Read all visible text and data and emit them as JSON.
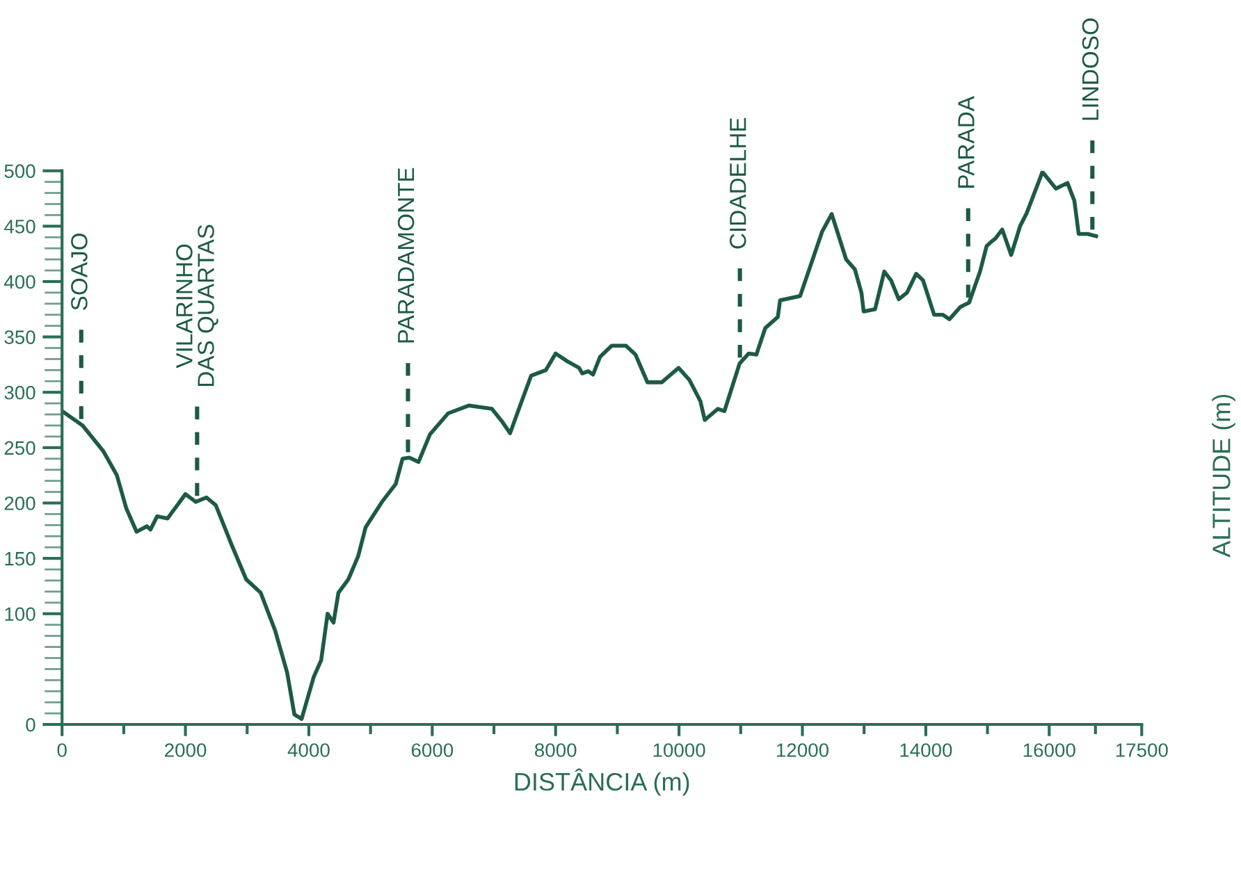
{
  "chart_data": {
    "type": "line",
    "xlabel": "DISTÂNCIA (m)",
    "ylabel": "ALTITUDE (m)",
    "series": [
      {
        "color": "#1d5a44",
        "x": [
          0,
          333,
          667,
          889,
          1042,
          1208,
          1375,
          1433,
          1542,
          1708,
          2000,
          2167,
          2341,
          2492,
          2758,
          2985,
          3219,
          3453,
          3648,
          3766,
          3883,
          4080,
          4200,
          4304,
          4400,
          4480,
          4640,
          4800,
          4920,
          5185,
          5407,
          5519,
          5630,
          5778,
          5963,
          6258,
          6592,
          6967,
          7127,
          7262,
          7405,
          7603,
          7841,
          8000,
          8189,
          8380,
          8432,
          8530,
          8607,
          8720,
          8909,
          9140,
          9295,
          9488,
          9721,
          9993,
          10170,
          10346,
          10418,
          10630,
          10736,
          10982,
          11130,
          11254,
          11398,
          11602,
          11638,
          11964,
          12319,
          12475,
          12709,
          12851,
          12957,
          12993,
          13178,
          13327,
          13438,
          13562,
          13696,
          13844,
          13956,
          14135,
          14277,
          14383,
          14560,
          14702,
          14879,
          14986,
          15043,
          15130,
          15239,
          15384,
          15528,
          15637,
          15891,
          16109,
          16298,
          16408,
          16478,
          16624,
          16761
        ],
        "values": [
          283,
          270,
          247,
          225,
          195,
          174,
          179,
          176,
          188,
          186,
          208,
          201,
          205,
          198,
          161,
          131,
          119,
          85,
          47,
          9,
          5,
          43,
          58,
          100,
          92,
          119,
          131,
          152,
          178,
          201,
          217,
          240,
          241,
          237,
          262,
          281,
          288,
          285,
          274,
          263,
          285,
          315,
          320,
          335,
          328,
          322,
          317,
          319,
          316,
          332,
          342,
          342,
          334,
          309,
          309,
          322,
          311,
          292,
          275,
          285,
          283,
          326,
          335,
          334,
          358,
          368,
          383,
          387,
          445,
          461,
          420,
          411,
          390,
          373,
          375,
          409,
          401,
          384,
          390,
          407,
          401,
          370,
          370,
          366,
          377,
          381,
          409,
          432,
          435,
          439,
          447,
          424,
          450,
          462,
          499,
          484,
          489,
          473,
          443,
          443,
          441
        ]
      }
    ],
    "xlim": [
      0,
      17500
    ],
    "xticks": [
      0,
      {
        "value": 1000,
        "label": null
      },
      2000,
      {
        "value": 3000,
        "label": null
      },
      4000,
      {
        "value": 5000,
        "label": null
      },
      6000,
      {
        "value": 7000,
        "label": null
      },
      8000,
      {
        "value": 9000,
        "label": null
      },
      10000,
      {
        "value": 11000,
        "label": null
      },
      12000,
      {
        "value": 13000,
        "label": null
      },
      14000,
      {
        "value": 15000,
        "label": null
      },
      16000,
      {
        "value": 16750,
        "label": null
      },
      17500
    ],
    "ylim": [
      0,
      500
    ],
    "yticks": [
      0,
      {
        "value": 10,
        "label": null
      },
      {
        "value": 20,
        "label": null
      },
      {
        "value": 30,
        "label": null
      },
      {
        "value": 40,
        "label": null
      },
      {
        "value": 50,
        "label": null
      },
      {
        "value": 60,
        "label": null
      },
      {
        "value": 70,
        "label": null
      },
      {
        "value": 80,
        "label": null
      },
      {
        "value": 90,
        "label": null
      },
      100,
      {
        "value": 110,
        "label": null
      },
      {
        "value": 120,
        "label": null
      },
      {
        "value": 130,
        "label": null
      },
      {
        "value": 140,
        "label": null
      },
      150,
      {
        "value": 160,
        "label": null
      },
      {
        "value": 170,
        "label": null
      },
      {
        "value": 180,
        "label": null
      },
      {
        "value": 190,
        "label": null
      },
      200,
      {
        "value": 210,
        "label": null
      },
      {
        "value": 220,
        "label": null
      },
      {
        "value": 230,
        "label": null
      },
      {
        "value": 240,
        "label": null
      },
      250,
      {
        "value": 260,
        "label": null
      },
      {
        "value": 270,
        "label": null
      },
      {
        "value": 280,
        "label": null
      },
      {
        "value": 290,
        "label": null
      },
      300,
      {
        "value": 310,
        "label": null
      },
      {
        "value": 320,
        "label": null
      },
      {
        "value": 330,
        "label": null
      },
      {
        "value": 340,
        "label": null
      },
      350,
      {
        "value": 360,
        "label": null
      },
      {
        "value": 370,
        "label": null
      },
      {
        "value": 380,
        "label": null
      },
      {
        "value": 390,
        "label": null
      },
      400,
      {
        "value": 410,
        "label": null
      },
      {
        "value": 420,
        "label": null
      },
      {
        "value": 430,
        "label": null
      },
      {
        "value": 440,
        "label": null
      },
      450,
      {
        "value": 460,
        "label": null
      },
      {
        "value": 470,
        "label": null
      },
      {
        "value": 480,
        "label": null
      },
      {
        "value": 490,
        "label": null
      },
      500
    ],
    "ref_lines": [
      {
        "axis": "x",
        "value": 311,
        "label": "SOAJO",
        "line_style": "dashed",
        "color": "#1d5a44"
      },
      {
        "axis": "x",
        "value": 2189,
        "label": "VILARINHO\nDAS QUARTAS",
        "line_style": "dashed",
        "color": "#1d5a44"
      },
      {
        "axis": "x",
        "value": 5607,
        "label": "PARADAMONTE",
        "line_style": "dashed",
        "color": "#1d5a44"
      },
      {
        "axis": "x",
        "value": 10987,
        "label": "CIDADELHE",
        "line_style": "dashed",
        "color": "#1d5a44"
      },
      {
        "axis": "x",
        "value": 14687,
        "label": "PARADA",
        "line_style": "dashed",
        "color": "#1d5a44"
      },
      {
        "axis": "x",
        "value": 16700,
        "label": "LINDOSO",
        "line_style": "dashed",
        "color": "#1d5a44"
      }
    ],
    "grid": false,
    "legend": false,
    "marker": "none",
    "line_style": "solid"
  }
}
